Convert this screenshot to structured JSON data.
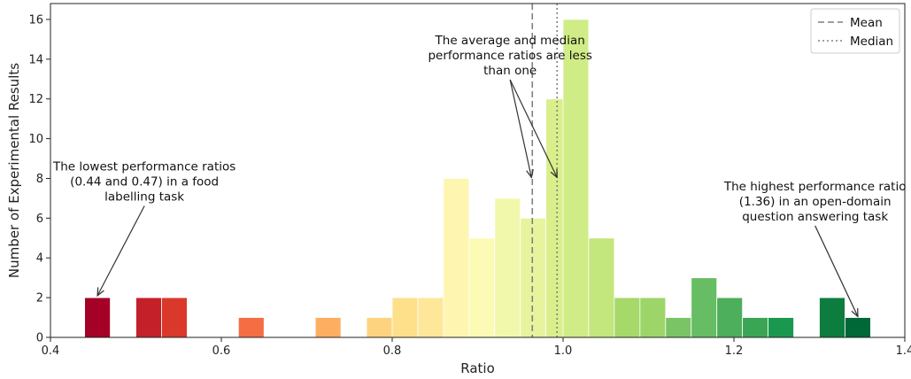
{
  "chart_data": {
    "type": "bar",
    "xlabel": "Ratio",
    "ylabel": "Number of Experimental Results",
    "xlim": [
      0.4,
      1.4
    ],
    "ylim": [
      0,
      16.8
    ],
    "bin_width": 0.03,
    "xticks": [
      0.4,
      0.6,
      0.8,
      1.0,
      1.2,
      1.4
    ],
    "xtick_labels": [
      "0.4",
      "0.6",
      "0.8",
      "1.0",
      "1.2",
      "1.4"
    ],
    "yticks": [
      0,
      2,
      4,
      6,
      8,
      10,
      12,
      14,
      16
    ],
    "ytick_labels": [
      "0",
      "2",
      "4",
      "6",
      "8",
      "10",
      "12",
      "14",
      "16"
    ],
    "bins": [
      {
        "start": 0.44,
        "value": 2,
        "color": "#a50026"
      },
      {
        "start": 0.5,
        "value": 2,
        "color": "#c3202a"
      },
      {
        "start": 0.53,
        "value": 2,
        "color": "#da382a"
      },
      {
        "start": 0.62,
        "value": 1,
        "color": "#f46d43"
      },
      {
        "start": 0.71,
        "value": 1,
        "color": "#fdae61"
      },
      {
        "start": 0.77,
        "value": 1,
        "color": "#fed37f"
      },
      {
        "start": 0.8,
        "value": 2,
        "color": "#fee08b"
      },
      {
        "start": 0.83,
        "value": 2,
        "color": "#fee799"
      },
      {
        "start": 0.86,
        "value": 8,
        "color": "#fef6b0"
      },
      {
        "start": 0.89,
        "value": 5,
        "color": "#fbfbb6"
      },
      {
        "start": 0.92,
        "value": 7,
        "color": "#f1f8ac"
      },
      {
        "start": 0.95,
        "value": 6,
        "color": "#e7f49d"
      },
      {
        "start": 0.98,
        "value": 12,
        "color": "#d9ef8b"
      },
      {
        "start": 1.0,
        "value": 16,
        "color": "#d0ec86"
      },
      {
        "start": 1.03,
        "value": 5,
        "color": "#c3e67d"
      },
      {
        "start": 1.06,
        "value": 2,
        "color": "#a6d96a"
      },
      {
        "start": 1.09,
        "value": 2,
        "color": "#9dd569"
      },
      {
        "start": 1.12,
        "value": 1,
        "color": "#7bc465"
      },
      {
        "start": 1.15,
        "value": 3,
        "color": "#66bd63"
      },
      {
        "start": 1.18,
        "value": 2,
        "color": "#4dae5b"
      },
      {
        "start": 1.21,
        "value": 1,
        "color": "#3aa655"
      },
      {
        "start": 1.24,
        "value": 1,
        "color": "#1a9850"
      },
      {
        "start": 1.3,
        "value": 2,
        "color": "#0d7d3f"
      },
      {
        "start": 1.33,
        "value": 1,
        "color": "#006837"
      }
    ],
    "reference_lines": [
      {
        "name": "Mean",
        "x": 0.964,
        "style": "dashed",
        "color": "#808080"
      },
      {
        "name": "Median",
        "x": 0.993,
        "style": "dotted",
        "color": "#808080"
      }
    ],
    "legend": {
      "position": "top-right"
    },
    "grid": false,
    "annotations": [
      {
        "id": "lowest",
        "lines": [
          "The lowest performance ratios",
          "(0.44 and 0.47) in a food",
          "labelling task"
        ],
        "text_x": 0.51,
        "text_y": 8.4,
        "targets": [
          [
            0.455,
            2.1
          ]
        ]
      },
      {
        "id": "average",
        "lines": [
          "The average and median",
          "performance ratios are less",
          "than one"
        ],
        "text_x": 0.938,
        "text_y": 14.75,
        "targets": [
          [
            0.963,
            8.05
          ],
          [
            0.993,
            8.05
          ]
        ]
      },
      {
        "id": "highest",
        "lines": [
          "The highest performance ratio",
          "(1.36) in an open-domain",
          "question answering task"
        ],
        "text_x": 1.295,
        "text_y": 7.4,
        "targets": [
          [
            1.345,
            1.05
          ]
        ]
      }
    ]
  }
}
